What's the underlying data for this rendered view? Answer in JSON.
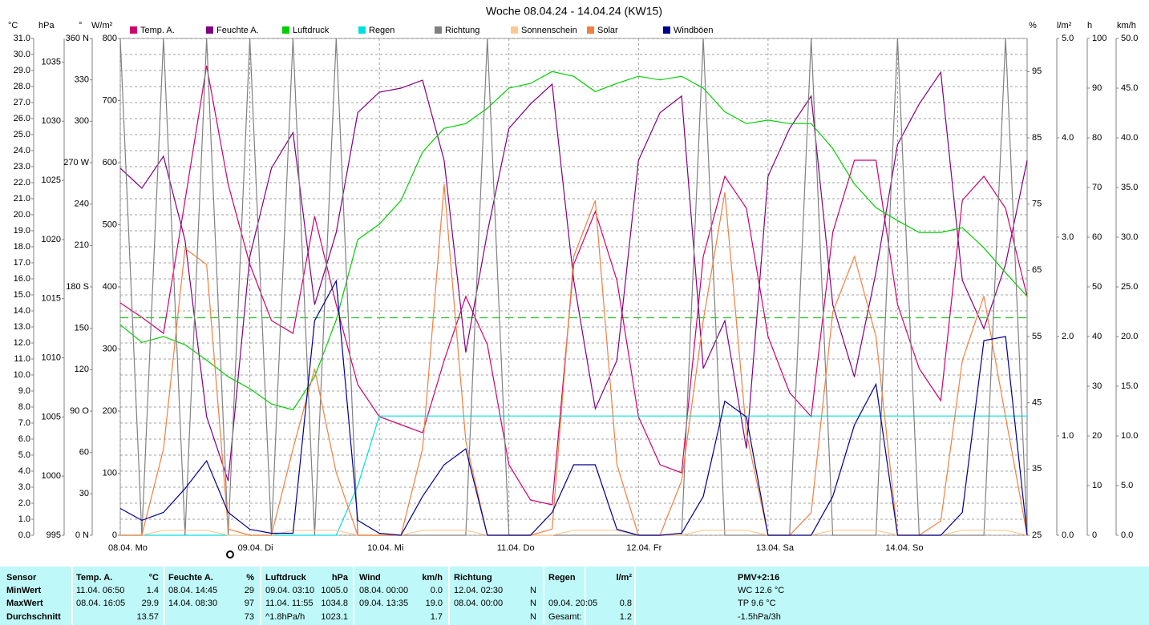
{
  "chart_data": {
    "type": "line",
    "title": "Woche 08.04.24 - 14.04.24 (KW15)",
    "x": [
      0,
      4,
      8,
      12,
      16,
      20,
      24,
      28,
      32,
      36,
      40,
      44,
      48,
      52,
      56,
      60,
      64,
      68,
      72,
      76,
      80,
      84,
      88,
      92,
      96,
      100,
      104,
      108,
      112,
      116,
      120,
      124,
      128,
      132,
      136,
      140,
      144,
      148,
      152,
      156,
      160,
      164,
      168
    ],
    "xlim": [
      0,
      168
    ],
    "xticks": [
      {
        "value": 0,
        "label": "08.04. Mo"
      },
      {
        "value": 24,
        "label": "09.04. Di"
      },
      {
        "value": 48,
        "label": "10.04. Mi"
      },
      {
        "value": 72,
        "label": "11.04. Do"
      },
      {
        "value": 96,
        "label": "12.04. Fr"
      },
      {
        "value": 120,
        "label": "13.04. Sa"
      },
      {
        "value": 144,
        "label": "14.04. So"
      }
    ],
    "grid": true,
    "axes": [
      {
        "label": "°C",
        "side": "left",
        "color": "#e0006a",
        "ylim": [
          0,
          31
        ],
        "yticks": [
          {
            "value": 0,
            "label": "0.0"
          },
          {
            "value": 1,
            "label": "1.0"
          },
          {
            "value": 2,
            "label": "2.0"
          },
          {
            "value": 3,
            "label": "3.0"
          },
          {
            "value": 4,
            "label": "4.0"
          },
          {
            "value": 5,
            "label": "5.0"
          },
          {
            "value": 6,
            "label": "6.0"
          },
          {
            "value": 7,
            "label": "7.0"
          },
          {
            "value": 8,
            "label": "8.0"
          },
          {
            "value": 9,
            "label": "9.0"
          },
          {
            "value": 10,
            "label": "10.0"
          },
          {
            "value": 11,
            "label": "11.0"
          },
          {
            "value": 12,
            "label": "12.0"
          },
          {
            "value": 13,
            "label": "13.0"
          },
          {
            "value": 14,
            "label": "14.0"
          },
          {
            "value": 15,
            "label": "15.0"
          },
          {
            "value": 16,
            "label": "16.0"
          },
          {
            "value": 17,
            "label": "17.0"
          },
          {
            "value": 18,
            "label": "18.0"
          },
          {
            "value": 19,
            "label": "19.0"
          },
          {
            "value": 20,
            "label": "20.0"
          },
          {
            "value": 21,
            "label": "21.0"
          },
          {
            "value": 22,
            "label": "22.0"
          },
          {
            "value": 23,
            "label": "23.0"
          },
          {
            "value": 24,
            "label": "24.0"
          },
          {
            "value": 25,
            "label": "25.0"
          },
          {
            "value": 26,
            "label": "26.0"
          },
          {
            "value": 27,
            "label": "27.0"
          },
          {
            "value": 28,
            "label": "28.0"
          },
          {
            "value": 29,
            "label": "29.0"
          },
          {
            "value": 30,
            "label": "30.0"
          },
          {
            "value": 31,
            "label": "31.0"
          }
        ]
      },
      {
        "label": "hPa",
        "side": "left",
        "color": "#00b000",
        "ylim": [
          995,
          1037
        ],
        "yticks": [
          995,
          1000,
          1005,
          1010,
          1015,
          1020,
          1025,
          1030,
          1035
        ]
      },
      {
        "label": "°",
        "side": "left",
        "color": "#505050",
        "ylim": [
          0,
          360
        ],
        "yticks": [
          {
            "value": 0,
            "label": "0 N"
          },
          30,
          60,
          {
            "value": 90,
            "label": "90 O"
          },
          120,
          150,
          {
            "value": 180,
            "label": "180 S"
          },
          210,
          240,
          {
            "value": 270,
            "label": "270 W"
          },
          300,
          330,
          {
            "value": 360,
            "label": "360 N"
          }
        ]
      },
      {
        "label": "W/m²",
        "side": "left",
        "color": "#d86a30",
        "ylim": [
          0,
          800
        ],
        "yticks": [
          0,
          100,
          200,
          300,
          400,
          500,
          600,
          700,
          800
        ]
      },
      {
        "label": "%",
        "side": "right",
        "color": "#800080",
        "ylim": [
          25,
          100
        ],
        "yticks": [
          25,
          35,
          45,
          55,
          65,
          75,
          85,
          95
        ]
      },
      {
        "label": "l/m²",
        "side": "right",
        "color": "#00d0d0",
        "ylim": [
          0,
          5
        ],
        "yticks": [
          {
            "value": 0,
            "label": "0.0"
          },
          {
            "value": 1,
            "label": "1.0"
          },
          {
            "value": 2,
            "label": "2.0"
          },
          {
            "value": 3,
            "label": "3.0"
          },
          {
            "value": 4,
            "label": "4.0"
          },
          {
            "value": 5,
            "label": "5.0"
          }
        ]
      },
      {
        "label": "h",
        "side": "right",
        "color": "#ffc080",
        "ylim": [
          0,
          100
        ],
        "yticks": [
          0,
          10,
          20,
          30,
          40,
          50,
          60,
          70,
          80,
          90,
          100
        ]
      },
      {
        "label": "km/h",
        "side": "right",
        "color": "#000080",
        "ylim": [
          0,
          50
        ],
        "yticks": [
          {
            "value": 0,
            "label": "0.0"
          },
          {
            "value": 5,
            "label": "5.0"
          },
          {
            "value": 10,
            "label": "10.0"
          },
          {
            "value": 15,
            "label": "15.0"
          },
          {
            "value": 20,
            "label": "20.0"
          },
          {
            "value": 25,
            "label": "25.0"
          },
          {
            "value": 30,
            "label": "30.0"
          },
          {
            "value": 35,
            "label": "35.0"
          },
          {
            "value": 40,
            "label": "40.0"
          },
          {
            "value": 45,
            "label": "45.0"
          },
          {
            "value": 50,
            "label": "50.0"
          }
        ]
      }
    ],
    "series": [
      {
        "name": "Temp. A.",
        "color": "#d0006e",
        "axis": 0,
        "values": [
          14.5,
          13.6,
          12.6,
          20.9,
          29.3,
          21.9,
          16.9,
          13.4,
          12.6,
          19.9,
          14.4,
          9.4,
          7.4,
          6.9,
          6.4,
          10.9,
          14.9,
          11.9,
          4.4,
          2.2,
          1.9,
          16.9,
          20.2,
          15.9,
          7.4,
          4.4,
          3.9,
          17.4,
          22.4,
          20.4,
          12.4,
          8.9,
          7.4,
          18.9,
          23.4,
          23.4,
          14.4,
          10.4,
          8.4,
          20.9,
          22.4,
          20.4,
          14.9
        ]
      },
      {
        "name": "Feuchte A.",
        "color": "#800080",
        "axis": 4,
        "values": [
          80.4,
          77.4,
          82.2,
          69.5,
          42.9,
          33.2,
          67.1,
          80.4,
          85.8,
          59.8,
          70.7,
          88.8,
          91.9,
          92.5,
          93.7,
          81.6,
          52.6,
          70.7,
          86.4,
          90.1,
          93.1,
          63.5,
          44.1,
          51.4,
          81.6,
          88.8,
          91.3,
          50.2,
          57.4,
          38.1,
          79.2,
          86.4,
          91.3,
          59.8,
          48.9,
          64.7,
          84.0,
          90.1,
          94.9,
          63.5,
          56.2,
          65.9,
          81.6
        ]
      },
      {
        "name": "Luftdruck",
        "color": "#00d000",
        "axis": 1,
        "values": [
          1012.8,
          1011.3,
          1011.8,
          1011.1,
          1009.8,
          1008.4,
          1007.4,
          1006.1,
          1005.6,
          1008.4,
          1013.2,
          1020.0,
          1021.3,
          1023.3,
          1027.4,
          1029.4,
          1029.8,
          1031.1,
          1032.8,
          1033.2,
          1034.2,
          1033.8,
          1032.5,
          1033.2,
          1033.8,
          1033.5,
          1033.8,
          1032.8,
          1030.8,
          1029.8,
          1030.1,
          1029.8,
          1029.8,
          1027.7,
          1024.7,
          1022.7,
          1021.6,
          1020.6,
          1020.6,
          1021.0,
          1019.3,
          1017.2,
          1015.2
        ]
      },
      {
        "name": "Regen",
        "color": "#00e0e0",
        "axis": 5,
        "values": [
          0,
          0,
          0,
          0,
          0,
          0,
          0,
          0,
          0,
          0,
          0,
          0.5,
          1.2,
          1.2,
          1.2,
          1.2,
          1.2,
          1.2,
          1.2,
          1.2,
          1.2,
          1.2,
          1.2,
          1.2,
          1.2,
          1.2,
          1.2,
          1.2,
          1.2,
          1.2,
          1.2,
          1.2,
          1.2,
          1.2,
          1.2,
          1.2,
          1.2,
          1.2,
          1.2,
          1.2,
          1.2,
          1.2,
          1.2
        ]
      },
      {
        "name": "Richtung",
        "color": "#808080",
        "axis": 2,
        "values": [
          360,
          0,
          360,
          0,
          360,
          0,
          360,
          0,
          360,
          0,
          360,
          0,
          0,
          0,
          0,
          0,
          0,
          360,
          0,
          0,
          0,
          0,
          0,
          0,
          0,
          0,
          0,
          360,
          0,
          0,
          0,
          0,
          360,
          0,
          0,
          0,
          360,
          0,
          0,
          0,
          0,
          360,
          0
        ]
      },
      {
        "name": "Sonnenschein",
        "color": "#ffc890",
        "axis": 6,
        "values": [
          0,
          0,
          1,
          1,
          1,
          0,
          0,
          0,
          1,
          1,
          1,
          0,
          0,
          0,
          1,
          1,
          1,
          0,
          0,
          0,
          0,
          1,
          1,
          1,
          0,
          0,
          0,
          1,
          1,
          1,
          0,
          0,
          0,
          1,
          1,
          1,
          0,
          0,
          0,
          1,
          1,
          1,
          0
        ]
      },
      {
        "name": "Solar",
        "color": "#f08040",
        "axis": 3,
        "values": [
          0,
          0,
          139,
          462,
          436,
          10,
          0,
          0,
          139,
          268,
          101,
          0,
          0,
          0,
          139,
          565,
          152,
          0,
          0,
          0,
          10,
          449,
          539,
          114,
          0,
          0,
          88,
          346,
          552,
          165,
          0,
          0,
          36,
          359,
          449,
          320,
          0,
          0,
          23,
          281,
          385,
          191,
          0
        ]
      },
      {
        "name": "Windböen",
        "color": "#000090",
        "axis": 7,
        "values": [
          2.7,
          1.5,
          2.3,
          4.7,
          7.5,
          2.3,
          0.6,
          0.2,
          0.2,
          21.6,
          25.6,
          1.5,
          0.2,
          0,
          3.9,
          7.1,
          8.7,
          0,
          0,
          0,
          2.3,
          7.1,
          7.1,
          0.6,
          0,
          0,
          0.2,
          3.9,
          13.5,
          11.9,
          0,
          0,
          0,
          3.9,
          11.1,
          15.2,
          0,
          0,
          0,
          2.3,
          19.6,
          20.0,
          0
        ]
      }
    ]
  },
  "table": {
    "header": [
      "Sensor",
      "Temp. A.",
      "°C",
      "Feuchte A.",
      "%",
      "Luftdruck",
      "hPa",
      "Wind",
      "km/h",
      "Richtung",
      null,
      "Regen",
      "l/m²",
      "PMV+2:16"
    ],
    "rows": [
      [
        "MinWert",
        "11.04. 06:50",
        "1.4",
        "08.04. 14:45",
        "29",
        "09.04. 03:10",
        "1005.0",
        "08.04. 00:00",
        "0.0",
        "12.04. 02:30",
        "N",
        null,
        null,
        "WC 12.6 °C"
      ],
      [
        "MaxWert",
        "08.04. 16:05",
        "29.9",
        "14.04. 08:30",
        "97",
        "11.04. 11:55",
        "1034.8",
        "09.04. 13:35",
        "19.0",
        "08.04. 00:00",
        "N",
        "09.04. 20:05",
        "0.8",
        "TP 9.6 °C"
      ],
      [
        "Durchschnitt",
        null,
        "13.57",
        null,
        "73",
        "^1.8hPa/h",
        "1023.1",
        null,
        "1.7",
        null,
        "N",
        "Gesamt:",
        "1.2",
        "-1.5hPa/3h"
      ]
    ]
  }
}
